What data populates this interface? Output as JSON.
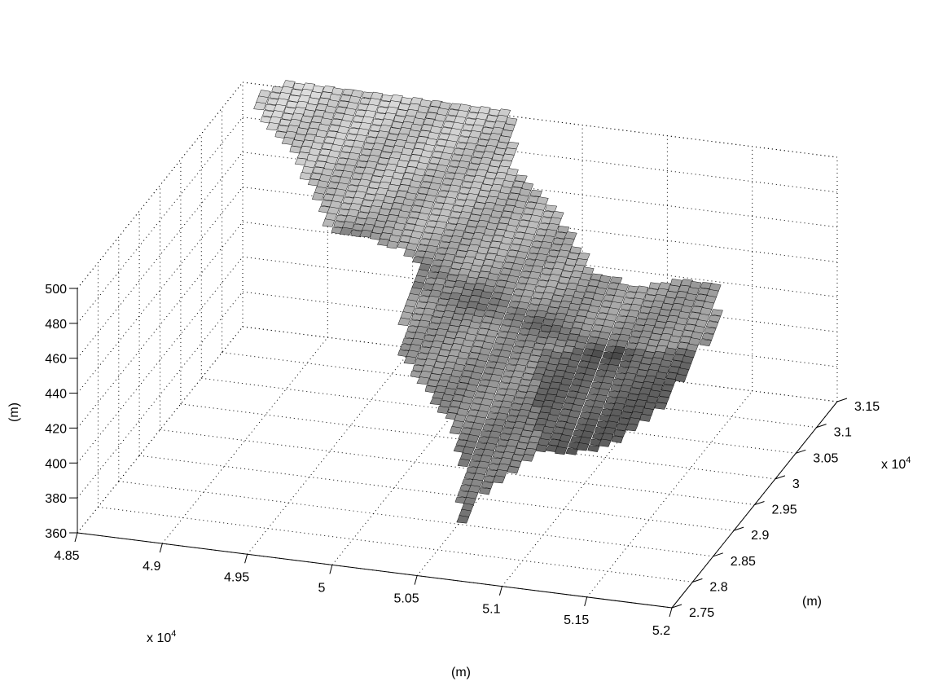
{
  "chart_data": {
    "type": "surface",
    "title": "",
    "x_axis": {
      "label": "(m)",
      "scale_label": "x 10",
      "scale_exponent": "4",
      "ticks": [
        "4.85",
        "4.9",
        "4.95",
        "5",
        "5.05",
        "5.1",
        "5.15",
        "5.2"
      ],
      "range": [
        48500,
        52000
      ]
    },
    "y_axis": {
      "label": "(m)",
      "scale_label": "x 10",
      "scale_exponent": "4",
      "ticks": [
        "2.75",
        "2.8",
        "2.85",
        "2.9",
        "2.95",
        "3",
        "3.05",
        "3.1",
        "3.15"
      ],
      "range": [
        27500,
        31500
      ]
    },
    "z_axis": {
      "label": "(m)",
      "ticks": [
        "360",
        "380",
        "400",
        "420",
        "440",
        "460",
        "480",
        "500"
      ],
      "range": [
        360,
        500
      ]
    },
    "grid": true,
    "colormap": "gray",
    "surface_description_values": {
      "outlet_elevation_approx": 362,
      "upper_ridge_elevation_approx": 500
    }
  }
}
